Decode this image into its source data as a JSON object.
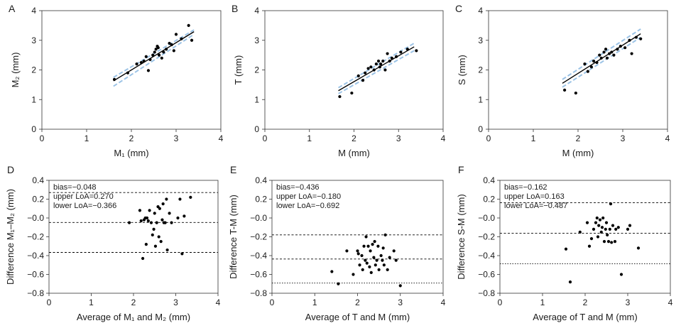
{
  "colors": {
    "data": "#000000",
    "fit": "#000000",
    "ci": "#9cc3e6",
    "refline": "#000000"
  },
  "chart_data": [
    {
      "panel_letter": "A",
      "type": "scatter",
      "xlabel": "M₁ (mm)",
      "ylabel": "M₂ (mm)",
      "xlim": [
        0,
        4
      ],
      "ylim": [
        0,
        4
      ],
      "xticks": [
        0,
        1,
        2,
        3,
        4
      ],
      "yticks": [
        0,
        1,
        2,
        3,
        4
      ],
      "points": [
        [
          1.62,
          1.68
        ],
        [
          1.92,
          1.9
        ],
        [
          2.12,
          2.2
        ],
        [
          2.22,
          2.25
        ],
        [
          2.28,
          2.3
        ],
        [
          2.33,
          2.45
        ],
        [
          2.38,
          1.98
        ],
        [
          2.42,
          2.35
        ],
        [
          2.48,
          2.5
        ],
        [
          2.52,
          2.6
        ],
        [
          2.55,
          2.7
        ],
        [
          2.58,
          2.8
        ],
        [
          2.6,
          2.75
        ],
        [
          2.62,
          2.5
        ],
        [
          2.68,
          2.4
        ],
        [
          2.72,
          2.6
        ],
        [
          2.78,
          2.7
        ],
        [
          2.85,
          2.9
        ],
        [
          2.9,
          2.85
        ],
        [
          2.95,
          2.65
        ],
        [
          3.0,
          3.2
        ],
        [
          3.12,
          3.05
        ],
        [
          3.28,
          3.5
        ],
        [
          3.35,
          3.0
        ]
      ],
      "fit": {
        "x": [
          1.6,
          3.4
        ],
        "y": [
          1.63,
          3.29
        ]
      },
      "ci_upper": {
        "x": [
          1.6,
          3.4
        ],
        "y": [
          1.75,
          3.35
        ]
      },
      "ci_lower": {
        "x": [
          1.6,
          3.4
        ],
        "y": [
          1.45,
          3.2
        ]
      }
    },
    {
      "panel_letter": "B",
      "type": "scatter",
      "xlabel": "M (mm)",
      "ylabel": "T (mm)",
      "xlim": [
        0,
        4
      ],
      "ylim": [
        0,
        4
      ],
      "xticks": [
        0,
        1,
        2,
        3,
        4
      ],
      "yticks": [
        0,
        1,
        2,
        3,
        4
      ],
      "points": [
        [
          1.68,
          1.1
        ],
        [
          1.95,
          1.22
        ],
        [
          2.1,
          1.8
        ],
        [
          2.2,
          1.65
        ],
        [
          2.25,
          1.9
        ],
        [
          2.32,
          2.05
        ],
        [
          2.38,
          2.1
        ],
        [
          2.45,
          2.0
        ],
        [
          2.5,
          2.2
        ],
        [
          2.55,
          2.3
        ],
        [
          2.58,
          2.1
        ],
        [
          2.6,
          2.2
        ],
        [
          2.65,
          2.3
        ],
        [
          2.7,
          2.0
        ],
        [
          2.75,
          2.55
        ],
        [
          2.8,
          2.3
        ],
        [
          2.85,
          2.4
        ],
        [
          2.95,
          2.45
        ],
        [
          3.05,
          2.6
        ],
        [
          3.2,
          2.7
        ],
        [
          3.4,
          2.65
        ]
      ],
      "fit": {
        "x": [
          1.65,
          3.35
        ],
        "y": [
          1.3,
          2.78
        ]
      },
      "ci_upper": {
        "x": [
          1.65,
          3.35
        ],
        "y": [
          1.4,
          2.9
        ]
      },
      "ci_lower": {
        "x": [
          1.65,
          3.35
        ],
        "y": [
          1.2,
          2.65
        ]
      }
    },
    {
      "panel_letter": "C",
      "type": "scatter",
      "xlabel": "M (mm)",
      "ylabel": "S (mm)",
      "xlim": [
        0,
        4
      ],
      "ylim": [
        0,
        4
      ],
      "xticks": [
        0,
        1,
        2,
        3,
        4
      ],
      "yticks": [
        0,
        1,
        2,
        3,
        4
      ],
      "points": [
        [
          1.7,
          1.32
        ],
        [
          1.95,
          1.22
        ],
        [
          2.15,
          2.2
        ],
        [
          2.22,
          1.95
        ],
        [
          2.3,
          2.1
        ],
        [
          2.35,
          2.3
        ],
        [
          2.42,
          2.25
        ],
        [
          2.48,
          2.5
        ],
        [
          2.52,
          2.4
        ],
        [
          2.58,
          2.6
        ],
        [
          2.62,
          2.7
        ],
        [
          2.65,
          2.4
        ],
        [
          2.7,
          2.55
        ],
        [
          2.75,
          2.6
        ],
        [
          2.8,
          2.5
        ],
        [
          2.88,
          2.7
        ],
        [
          2.95,
          2.8
        ],
        [
          3.05,
          2.75
        ],
        [
          3.15,
          3.0
        ],
        [
          3.2,
          2.55
        ],
        [
          3.3,
          3.1
        ],
        [
          3.4,
          3.05
        ]
      ],
      "fit": {
        "x": [
          1.65,
          3.4
        ],
        "y": [
          1.55,
          3.22
        ]
      },
      "ci_upper": {
        "x": [
          1.65,
          3.4
        ],
        "y": [
          1.68,
          3.38
        ]
      },
      "ci_lower": {
        "x": [
          1.65,
          3.4
        ],
        "y": [
          1.42,
          3.1
        ]
      }
    },
    {
      "panel_letter": "D",
      "type": "scatter",
      "xlabel": "Average of M₁ and M₂ (mm)",
      "ylabel": "Difference M₁–M₂ (mm)",
      "xlim": [
        0,
        4
      ],
      "ylim": [
        -0.8,
        0.4
      ],
      "xticks": [
        0,
        1,
        2,
        3,
        4
      ],
      "ytick_labels": [
        "0.4",
        "0.2",
        "−0.0",
        "−0.2",
        "−0.4",
        "−0.6",
        "−0.8"
      ],
      "annotations": [
        "bias=−0.048",
        "upper LoA=0.270",
        "lower LoA=−0.366"
      ],
      "lines": [
        {
          "y": 0.27,
          "style": "dashed"
        },
        {
          "y": -0.048,
          "style": "dashed"
        },
        {
          "y": -0.366,
          "style": "dashed"
        }
      ],
      "points": [
        [
          1.9,
          -0.05
        ],
        [
          2.15,
          0.08
        ],
        [
          2.18,
          -0.03
        ],
        [
          2.22,
          -0.43
        ],
        [
          2.25,
          -0.02
        ],
        [
          2.28,
          0.0
        ],
        [
          2.3,
          -0.28
        ],
        [
          2.32,
          0.0
        ],
        [
          2.35,
          -0.03
        ],
        [
          2.38,
          0.08
        ],
        [
          2.42,
          -0.05
        ],
        [
          2.45,
          -0.18
        ],
        [
          2.48,
          -0.12
        ],
        [
          2.5,
          0.05
        ],
        [
          2.52,
          -0.3
        ],
        [
          2.55,
          -0.05
        ],
        [
          2.58,
          0.12
        ],
        [
          2.6,
          -0.2
        ],
        [
          2.62,
          0.1
        ],
        [
          2.65,
          -0.25
        ],
        [
          2.68,
          -0.02
        ],
        [
          2.7,
          0.15
        ],
        [
          2.72,
          -0.05
        ],
        [
          2.75,
          -0.05
        ],
        [
          2.78,
          0.2
        ],
        [
          2.8,
          -0.34
        ],
        [
          2.85,
          0.05
        ],
        [
          2.9,
          -0.05
        ],
        [
          3.05,
          0.0
        ],
        [
          3.1,
          0.2
        ],
        [
          3.15,
          -0.38
        ],
        [
          3.2,
          0.02
        ],
        [
          3.35,
          0.22
        ]
      ]
    },
    {
      "panel_letter": "E",
      "type": "scatter",
      "xlabel": "Average of T and M (mm)",
      "ylabel": "Difference T-M (mm)",
      "xlim": [
        0,
        4
      ],
      "ylim": [
        -0.8,
        0.4
      ],
      "xticks": [
        0,
        1,
        2,
        3,
        4
      ],
      "ytick_labels": [
        "0.4",
        "0.2",
        "−0.0",
        "−0.2",
        "−0.4",
        "−0.6",
        "−0.8"
      ],
      "annotations": [
        "bias=−0.436",
        "upper LoA=−0.180",
        "lower LoA=−0.692"
      ],
      "lines": [
        {
          "y": -0.18,
          "style": "dashed"
        },
        {
          "y": -0.436,
          "style": "dashed"
        },
        {
          "y": -0.692,
          "style": "dotted"
        }
      ],
      "points": [
        [
          1.4,
          -0.57
        ],
        [
          1.55,
          -0.7
        ],
        [
          1.75,
          -0.35
        ],
        [
          1.9,
          -0.6
        ],
        [
          2.0,
          -0.35
        ],
        [
          2.02,
          -0.38
        ],
        [
          2.05,
          -0.5
        ],
        [
          2.1,
          -0.4
        ],
        [
          2.12,
          -0.55
        ],
        [
          2.15,
          -0.3
        ],
        [
          2.18,
          -0.45
        ],
        [
          2.2,
          -0.2
        ],
        [
          2.22,
          -0.48
        ],
        [
          2.25,
          -0.3
        ],
        [
          2.28,
          -0.52
        ],
        [
          2.3,
          -0.35
        ],
        [
          2.32,
          -0.58
        ],
        [
          2.35,
          -0.28
        ],
        [
          2.38,
          -0.42
        ],
        [
          2.4,
          -0.25
        ],
        [
          2.42,
          -0.5
        ],
        [
          2.45,
          -0.45
        ],
        [
          2.48,
          -0.3
        ],
        [
          2.5,
          -0.55
        ],
        [
          2.55,
          -0.4
        ],
        [
          2.58,
          -0.45
        ],
        [
          2.6,
          -0.32
        ],
        [
          2.62,
          -0.5
        ],
        [
          2.65,
          -0.18
        ],
        [
          2.7,
          -0.55
        ],
        [
          2.75,
          -0.42
        ],
        [
          2.85,
          -0.35
        ],
        [
          2.9,
          -0.45
        ],
        [
          3.0,
          -0.72
        ]
      ]
    },
    {
      "panel_letter": "F",
      "type": "scatter",
      "xlabel": "Average of T and M (mm)",
      "ylabel": "Difference S-M (mm)",
      "xlim": [
        0,
        4
      ],
      "ylim": [
        -0.8,
        0.4
      ],
      "xticks": [
        0,
        1,
        2,
        3,
        4
      ],
      "ytick_labels": [
        "0.4",
        "0.2",
        "−0.0",
        "−0.2",
        "−0.4",
        "−0.6",
        "−0.8"
      ],
      "annotations": [
        "bias=−0.162",
        "upper LoA=0.163",
        "lower LoA=−0.487"
      ],
      "lines": [
        {
          "y": 0.163,
          "style": "dashed"
        },
        {
          "y": -0.162,
          "style": "dashed"
        },
        {
          "y": -0.487,
          "style": "dotted"
        }
      ],
      "points": [
        [
          1.55,
          -0.33
        ],
        [
          1.65,
          -0.68
        ],
        [
          1.88,
          -0.15
        ],
        [
          2.05,
          -0.05
        ],
        [
          2.1,
          -0.3
        ],
        [
          2.15,
          -0.22
        ],
        [
          2.2,
          -0.12
        ],
        [
          2.25,
          -0.05
        ],
        [
          2.28,
          0.0
        ],
        [
          2.3,
          -0.2
        ],
        [
          2.32,
          -0.08
        ],
        [
          2.35,
          -0.02
        ],
        [
          2.38,
          -0.15
        ],
        [
          2.4,
          -0.1
        ],
        [
          2.42,
          0.0
        ],
        [
          2.45,
          -0.25
        ],
        [
          2.48,
          -0.12
        ],
        [
          2.5,
          -0.05
        ],
        [
          2.52,
          -0.18
        ],
        [
          2.55,
          -0.25
        ],
        [
          2.58,
          -0.12
        ],
        [
          2.6,
          0.15
        ],
        [
          2.62,
          -0.26
        ],
        [
          2.65,
          -0.08
        ],
        [
          2.7,
          -0.25
        ],
        [
          2.72,
          -0.12
        ],
        [
          2.78,
          -0.1
        ],
        [
          2.85,
          -0.6
        ],
        [
          3.0,
          -0.12
        ],
        [
          3.05,
          -0.08
        ],
        [
          3.25,
          -0.32
        ]
      ]
    }
  ]
}
